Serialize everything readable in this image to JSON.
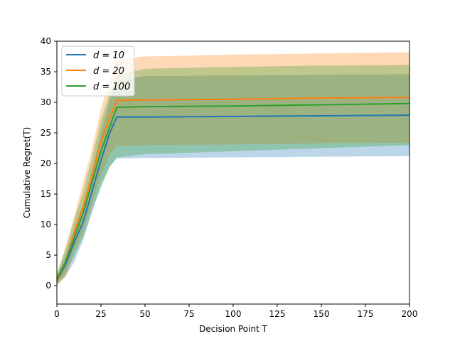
{
  "chart_data": {
    "type": "line",
    "title": "",
    "xlabel": "Decision Point T",
    "ylabel": "Cumulative  Regret(T)",
    "xlim": [
      0,
      200
    ],
    "ylim": [
      -3,
      40
    ],
    "xticks": [
      "0",
      "25",
      "50",
      "75",
      "100",
      "125",
      "150",
      "175",
      "200"
    ],
    "yticks": [
      "0",
      "5",
      "10",
      "15",
      "20",
      "25",
      "30",
      "35",
      "40"
    ],
    "grid": false,
    "legend_position": "top-left",
    "series": [
      {
        "name": "d = 10",
        "color": "#1f77b4",
        "x": [
          0,
          5,
          10,
          15,
          20,
          25,
          30,
          34,
          50,
          100,
          150,
          200
        ],
        "y": [
          0.8,
          3.5,
          7.2,
          10.5,
          15.5,
          20.5,
          25.0,
          27.6,
          27.6,
          27.7,
          27.8,
          27.9
        ],
        "lower": [
          0.2,
          1.5,
          4.0,
          7.5,
          12.0,
          16.5,
          19.5,
          20.8,
          20.9,
          21.0,
          21.1,
          21.2
        ],
        "upper": [
          1.5,
          5.0,
          9.5,
          13.5,
          19.0,
          25.0,
          30.5,
          33.5,
          34.3,
          34.4,
          34.5,
          34.6
        ]
      },
      {
        "name": "d = 20",
        "color": "#ff7f0e",
        "x": [
          0,
          5,
          10,
          15,
          20,
          25,
          30,
          34,
          50,
          100,
          150,
          200
        ],
        "y": [
          0.8,
          4.0,
          8.8,
          13.0,
          18.0,
          23.5,
          27.5,
          30.3,
          30.4,
          30.5,
          30.7,
          30.8
        ],
        "lower": [
          0.0,
          1.5,
          5.5,
          9.0,
          13.5,
          18.0,
          21.5,
          22.8,
          23.0,
          23.1,
          23.3,
          23.4
        ],
        "upper": [
          1.8,
          6.5,
          11.5,
          17.0,
          22.5,
          29.0,
          33.5,
          37.0,
          37.5,
          37.8,
          38.0,
          38.2
        ]
      },
      {
        "name": "d = 100",
        "color": "#2ca02c",
        "x": [
          0,
          5,
          10,
          15,
          20,
          25,
          30,
          34,
          50,
          100,
          150,
          200
        ],
        "y": [
          1.0,
          4.0,
          8.0,
          12.0,
          17.0,
          22.0,
          26.0,
          29.2,
          29.3,
          29.4,
          29.6,
          29.8
        ],
        "lower": [
          0.3,
          2.0,
          5.0,
          8.0,
          12.5,
          16.0,
          19.5,
          21.0,
          21.5,
          22.0,
          22.5,
          23.0
        ],
        "upper": [
          2.0,
          6.0,
          11.0,
          15.5,
          21.0,
          27.0,
          31.5,
          34.5,
          35.5,
          35.8,
          36.0,
          36.1
        ]
      }
    ]
  }
}
